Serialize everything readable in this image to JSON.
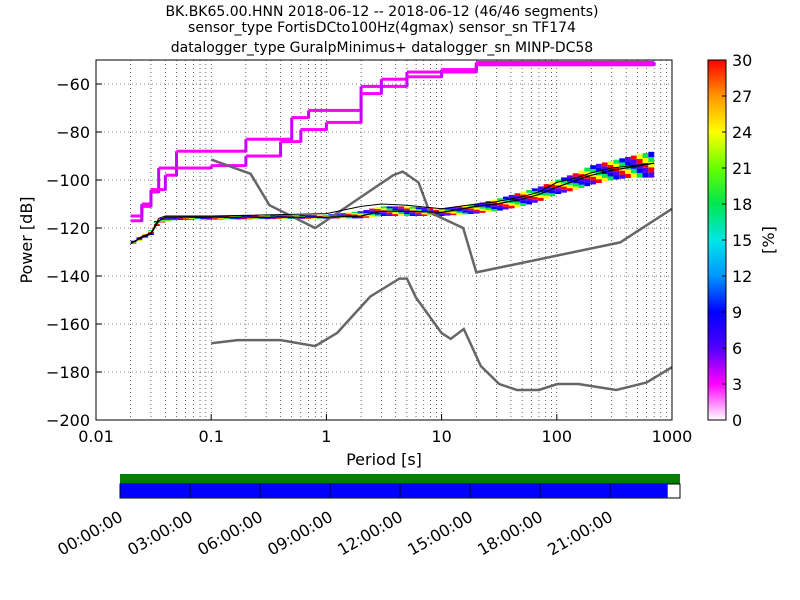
{
  "title_lines": [
    "BK.BK65.00.HNN   2018-06-12 -- 2018-06-12  (46/46 segments)",
    "sensor_type FortisDCto100Hz(4gmax) sensor_sn TF174",
    "datalogger_type GuralpMinimus+ datalogger_sn MINP-DC58"
  ],
  "chart_data": {
    "type": "heatmap",
    "xlabel": "Period [s]",
    "ylabel": "Power [dB]",
    "x_scale": "log",
    "xlim": [
      0.01,
      1000
    ],
    "ylim": [
      -200,
      -50
    ],
    "x_ticks": [
      0.01,
      0.1,
      1,
      10,
      100,
      1000
    ],
    "x_tick_labels": [
      "0.01",
      "0.1",
      "1",
      "10",
      "100",
      "1000"
    ],
    "y_ticks": [
      -200,
      -180,
      -160,
      -140,
      -120,
      -100,
      -80,
      -60
    ],
    "y_tick_labels": [
      "−200",
      "−180",
      "−160",
      "−140",
      "−120",
      "−100",
      "−80",
      "−60"
    ],
    "colorbar": {
      "label": "[%]",
      "range": [
        0,
        30
      ],
      "ticks": [
        0,
        3,
        6,
        9,
        12,
        15,
        18,
        21,
        24,
        27,
        30
      ],
      "colors": [
        "#ffffff",
        "#ff00ff",
        "#5000ff",
        "#0000ff",
        "#0096ff",
        "#00e6e6",
        "#00e650",
        "#66ff00",
        "#ffff00",
        "#ff9600",
        "#ff0000"
      ]
    },
    "noise_models": [
      {
        "model": "NHNM",
        "x": [
          0.1,
          0.22,
          0.32,
          0.8,
          3.8,
          4.6,
          6.3,
          7.9,
          15.4,
          20,
          354.8,
          1000
        ],
        "y": [
          -91.5,
          -97.4,
          -110.5,
          -120,
          -98,
          -96.5,
          -101,
          -113.5,
          -120,
          -138.5,
          -126,
          -112
        ]
      },
      {
        "model": "NLNM",
        "x": [
          0.1,
          0.17,
          0.4,
          0.8,
          1.24,
          2.4,
          4.3,
          5,
          6,
          10,
          12,
          15.6,
          21.9,
          31.6,
          45,
          70,
          101,
          154,
          328,
          600,
          1000
        ],
        "y": [
          -168,
          -166.7,
          -166.7,
          -169.2,
          -163.7,
          -148.6,
          -141.1,
          -141.1,
          -149,
          -163.8,
          -166.2,
          -162.1,
          -177.5,
          -185,
          -187.5,
          -187.5,
          -185,
          -185,
          -187.5,
          -184.4,
          -178
        ]
      }
    ],
    "mode_curve": {
      "x": [
        0.02,
        0.025,
        0.03,
        0.035,
        0.04,
        0.05,
        0.1,
        1,
        2,
        3,
        5,
        10,
        20,
        30,
        50,
        70,
        100,
        150,
        200,
        300,
        700
      ],
      "y": [
        -126.5,
        -124,
        -122.5,
        -117,
        -115.5,
        -115.5,
        -115.5,
        -115.5,
        -115,
        -113,
        -113,
        -113.5,
        -111,
        -110,
        -108,
        -106,
        -103,
        -100,
        -98,
        -96,
        -93
      ]
    },
    "mean_curve": {
      "x": [
        0.02,
        0.025,
        0.03,
        0.035,
        0.04,
        0.05,
        0.1,
        1,
        2,
        3,
        5,
        10,
        20,
        30,
        50,
        70,
        100,
        150,
        200,
        300,
        700
      ],
      "y": [
        -126.5,
        -123.5,
        -122,
        -116,
        -115,
        -115,
        -115,
        -114,
        -111,
        -110,
        -110.5,
        -112,
        -110,
        -109,
        -107,
        -105,
        -101,
        -99,
        -97,
        -95,
        -93
      ]
    },
    "outlier_high": {
      "x": [
        0.02,
        0.025,
        0.03,
        0.035,
        0.05,
        0.1,
        0.2,
        0.5,
        0.7,
        1,
        2,
        5,
        10,
        20,
        700
      ],
      "y": [
        -117,
        -111,
        -105,
        -95,
        -88,
        -88,
        -83,
        -74,
        -71,
        -71,
        -61,
        -55,
        -54,
        -51,
        -51
      ]
    },
    "outlier_high2": {
      "x": [
        0.02,
        0.025,
        0.03,
        0.04,
        0.05,
        0.1,
        0.2,
        0.4,
        0.6,
        1,
        2,
        3,
        5,
        10,
        20,
        700
      ],
      "y": [
        -115,
        -110,
        -104,
        -98,
        -95,
        -94,
        -90,
        -84,
        -79,
        -76,
        -64,
        -58,
        -57,
        -55,
        -52,
        -51
      ]
    },
    "percentile_band": {
      "x": [
        0.02,
        0.03,
        0.035,
        0.05,
        1,
        2,
        3,
        5,
        10,
        20,
        30,
        50,
        70,
        100,
        150,
        200,
        300,
        450,
        700
      ],
      "lower": [
        -127,
        -123,
        -118,
        -116.5,
        -116,
        -116,
        -115,
        -115,
        -115,
        -114,
        -113,
        -111,
        -109,
        -106,
        -104,
        -102,
        -100,
        -99,
        -99
      ],
      "upper": [
        -126,
        -121,
        -116,
        -115,
        -114.5,
        -113,
        -111,
        -111,
        -112,
        -110,
        -108,
        -105,
        -103,
        -100,
        -97,
        -94,
        -92,
        -90,
        -88
      ]
    },
    "timeline": {
      "tick_labels": [
        "00:00:00",
        "03:00:00",
        "06:00:00",
        "09:00:00",
        "12:00:00",
        "15:00:00",
        "18:00:00",
        "21:00:00"
      ],
      "coverage_fraction": 0.978,
      "data_color": "#0000ff",
      "gap_color": "#ffffff",
      "available_color": "#008000"
    }
  }
}
